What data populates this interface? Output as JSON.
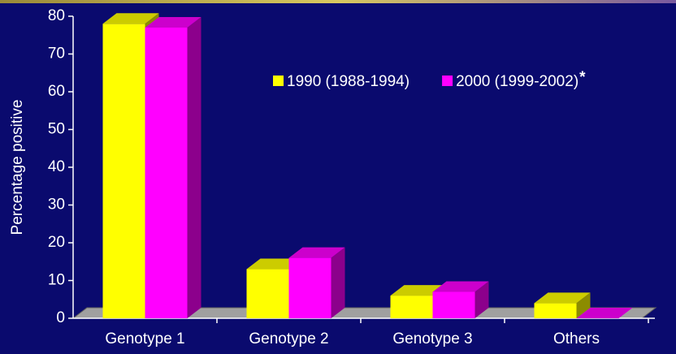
{
  "chart_data": {
    "type": "bar3d",
    "y_label": "Percentage positive",
    "categories": [
      "Genotype 1",
      "Genotype 2",
      "Genotype 3",
      "Others"
    ],
    "series": [
      {
        "name": "1990 (1988-1994)",
        "color": "#ffff00",
        "values": [
          78,
          13,
          6,
          4
        ]
      },
      {
        "name": "2000 (1999-2002)",
        "color": "#ff00ff",
        "values": [
          77,
          16,
          7,
          0
        ]
      }
    ],
    "annotation": "*",
    "ylim": [
      0,
      80
    ],
    "yticks": [
      0,
      10,
      20,
      30,
      40,
      50,
      60,
      70,
      80
    ]
  }
}
